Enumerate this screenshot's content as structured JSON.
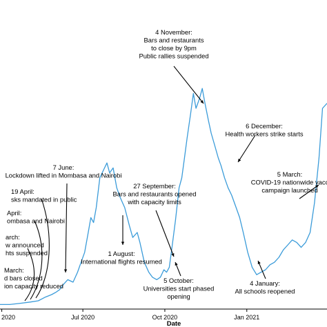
{
  "chart_data": {
    "type": "line",
    "title": "",
    "xlabel": "Date",
    "ylabel": "",
    "x_ticks": [
      {
        "date": "2020-04-01",
        "label": "2020"
      },
      {
        "date": "2020-07-01",
        "label": "Jul 2020"
      },
      {
        "date": "2020-10-01",
        "label": "Oct 2020"
      },
      {
        "date": "2021-01-01",
        "label": "Jan 2021"
      }
    ],
    "xlim": [
      "2020-03-30",
      "2021-04-01"
    ],
    "ylim": [
      0,
      100
    ],
    "grid": false,
    "legend": "none",
    "line_color": "#3a9bd9",
    "series": [
      {
        "x": [
          "2020-03-30",
          "2020-04-10",
          "2020-04-22",
          "2020-05-03",
          "2020-05-12",
          "2020-05-20",
          "2020-05-27",
          "2020-06-01",
          "2020-06-05",
          "2020-06-09",
          "2020-06-14",
          "2020-06-20",
          "2020-06-25",
          "2020-06-29",
          "2020-07-03",
          "2020-07-07",
          "2020-07-10",
          "2020-07-13",
          "2020-07-16",
          "2020-07-20",
          "2020-07-24",
          "2020-07-28",
          "2020-07-31",
          "2020-08-04",
          "2020-08-08",
          "2020-08-12",
          "2020-08-17",
          "2020-08-22",
          "2020-08-26",
          "2020-08-31",
          "2020-09-03",
          "2020-09-08",
          "2020-09-13",
          "2020-09-17",
          "2020-09-22",
          "2020-09-26",
          "2020-09-30",
          "2020-10-03",
          "2020-10-06",
          "2020-10-09",
          "2020-10-13",
          "2020-10-17",
          "2020-10-20",
          "2020-10-23",
          "2020-10-26",
          "2020-10-30",
          "2020-11-02",
          "2020-11-05",
          "2020-11-09",
          "2020-11-12",
          "2020-11-15",
          "2020-11-19",
          "2020-11-22",
          "2020-11-26",
          "2020-11-30",
          "2020-12-03",
          "2020-12-07",
          "2020-12-11",
          "2020-12-15",
          "2020-12-20",
          "2020-12-24",
          "2020-12-28",
          "2021-01-02",
          "2021-01-07",
          "2021-01-12",
          "2021-01-17",
          "2021-01-22",
          "2021-01-27",
          "2021-02-01",
          "2021-02-06",
          "2021-02-11",
          "2021-02-16",
          "2021-02-21",
          "2021-02-26",
          "2021-03-03",
          "2021-03-08",
          "2021-03-13",
          "2021-03-18",
          "2021-03-23",
          "2021-03-27",
          "2021-04-01"
        ],
        "y": [
          1,
          1,
          1.5,
          2,
          2.5,
          4,
          5,
          6,
          7,
          9,
          11,
          10,
          14,
          18,
          22,
          30,
          36,
          34,
          40,
          52,
          55,
          58,
          54,
          56,
          48,
          44,
          40,
          33,
          28,
          30,
          26,
          18,
          14,
          12,
          11,
          12,
          15,
          14,
          16,
          24,
          35,
          48,
          52,
          60,
          68,
          78,
          86,
          80,
          84,
          88,
          82,
          75,
          70,
          65,
          60,
          57,
          52,
          48,
          45,
          40,
          36,
          30,
          22,
          16,
          13,
          14,
          15,
          17,
          18,
          20,
          23,
          25,
          27,
          26,
          24,
          26,
          30,
          42,
          60,
          80,
          82
        ]
      }
    ],
    "annotations": [
      {
        "lines": [
          "4 November:",
          "Bars and restaurants",
          "to close by 9pm",
          "Public rallies suspended"
        ]
      },
      {
        "lines": [
          "6 December:",
          "Health workers strike starts"
        ]
      },
      {
        "lines": [
          "7 June:",
          "Lockdown lifted in Mombasa and Nairobi"
        ]
      },
      {
        "lines": [
          "19 April:",
          "sks mandated in public"
        ]
      },
      {
        "lines": [
          "April:",
          "ombasa and Nairobi"
        ]
      },
      {
        "lines": [
          "arch:",
          "w announced",
          "hts suspended"
        ]
      },
      {
        "lines": [
          "March:",
          "d bars closed",
          "ion capacity reduced"
        ]
      },
      {
        "lines": [
          "27 September:",
          "Bars and restaurants opened",
          "with capacity limits"
        ]
      },
      {
        "lines": [
          "1 August:",
          "International flights resumed"
        ]
      },
      {
        "lines": [
          "5 October:",
          "Universities start phased",
          "opening"
        ]
      },
      {
        "lines": [
          "4 January:",
          "All schools reopened"
        ]
      },
      {
        "lines": [
          "5 March:",
          "COVID-19 nationwide vacc",
          "campaign launched"
        ]
      }
    ]
  }
}
